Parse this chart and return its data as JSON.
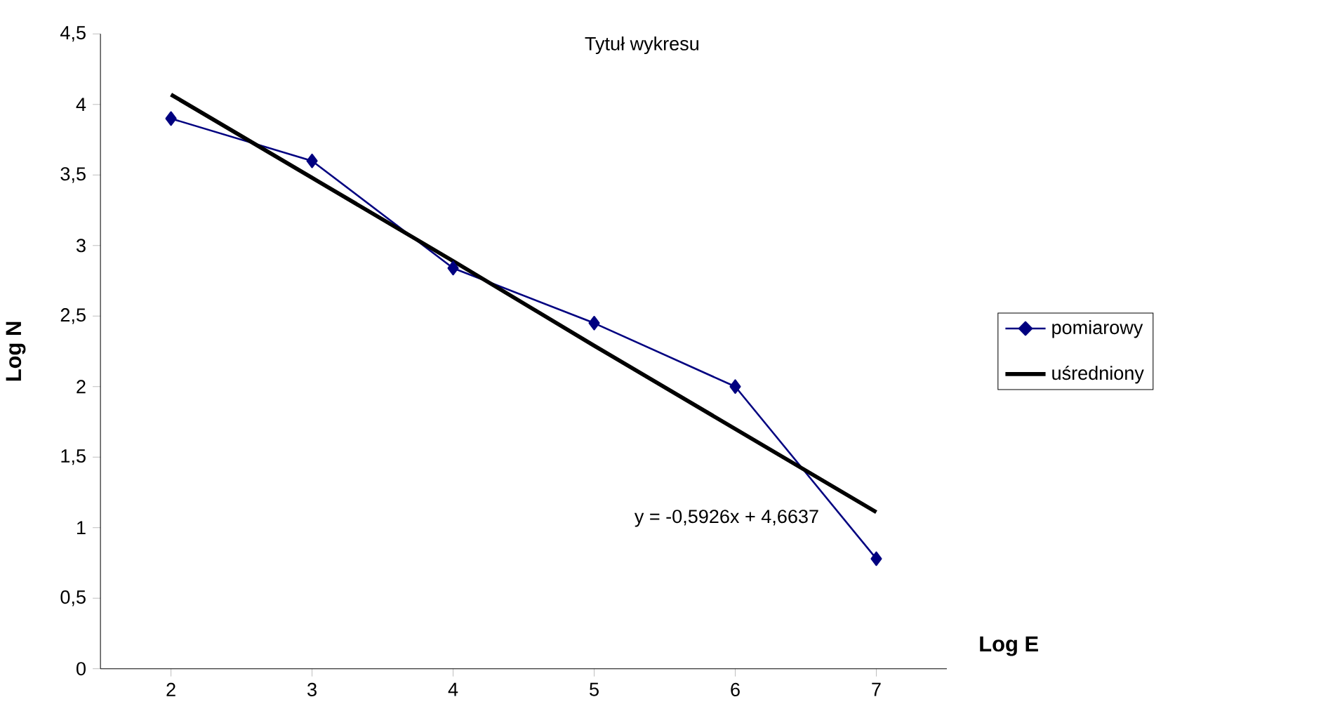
{
  "chart_data": {
    "type": "line",
    "title": "Tytuł wykresu",
    "xlabel": "Log E",
    "ylabel": "Log N",
    "categories": [
      "2",
      "3",
      "4",
      "5",
      "6",
      "7"
    ],
    "series": [
      {
        "name": "pomiarowy",
        "color": "#000080",
        "marker": "diamond",
        "values": [
          3.9,
          3.6,
          2.84,
          2.45,
          2.0,
          0.78
        ]
      },
      {
        "name": "uśredniony",
        "color": "#000000",
        "marker": "none",
        "values": [
          4.07,
          3.48,
          2.89,
          2.29,
          1.7,
          1.11
        ]
      }
    ],
    "ylim": [
      0,
      4.5
    ],
    "yticks": [
      {
        "value": 0,
        "label": "0"
      },
      {
        "value": 0.5,
        "label": "0,5"
      },
      {
        "value": 1,
        "label": "1"
      },
      {
        "value": 1.5,
        "label": "1,5"
      },
      {
        "value": 2,
        "label": "2"
      },
      {
        "value": 2.5,
        "label": "2,5"
      },
      {
        "value": 3,
        "label": "3"
      },
      {
        "value": 3.5,
        "label": "3,5"
      },
      {
        "value": 4,
        "label": "4"
      },
      {
        "value": 4.5,
        "label": "4,5"
      }
    ],
    "annotations": [
      "y = -0,5926x + 4,6637"
    ],
    "legend": "right"
  }
}
